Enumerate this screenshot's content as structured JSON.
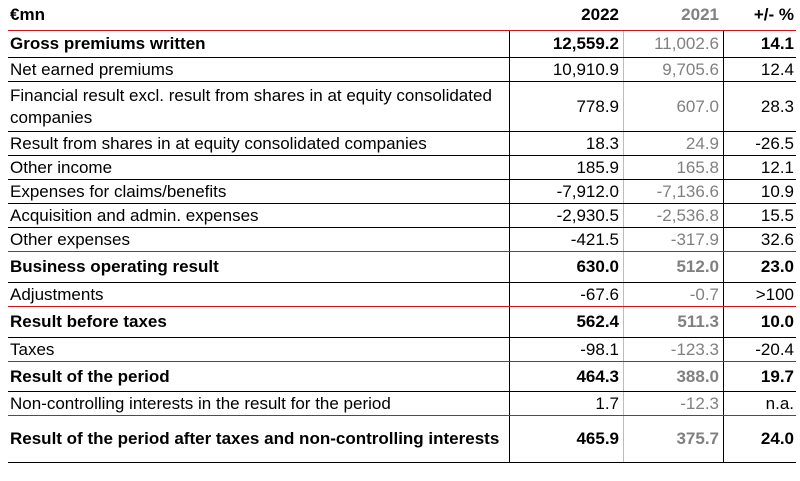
{
  "header": {
    "label": "€mn",
    "col_2022": "2022",
    "col_2021": "2021",
    "col_change": "+/- %"
  },
  "rows": [
    {
      "label": "Gross premiums written",
      "v2022": "12,559.2",
      "v2021": "11,002.6",
      "change": "14.1",
      "bold": true
    },
    {
      "label": "Net earned premiums",
      "v2022": "10,910.9",
      "v2021": "9,705.6",
      "change": "12.4",
      "bold": false
    },
    {
      "label": "Financial result excl. result from shares in at equity consolidated companies",
      "v2022": "778.9",
      "v2021": "607.0",
      "change": "28.3",
      "bold": false
    },
    {
      "label": "Result from shares in at equity consolidated companies",
      "v2022": "18.3",
      "v2021": "24.9",
      "change": "-26.5",
      "bold": false
    },
    {
      "label": "Other income",
      "v2022": "185.9",
      "v2021": "165.8",
      "change": "12.1",
      "bold": false
    },
    {
      "label": "Expenses for claims/benefits",
      "v2022": "-7,912.0",
      "v2021": "-7,136.6",
      "change": "10.9",
      "bold": false
    },
    {
      "label": "Acquisition and admin. expenses",
      "v2022": "-2,930.5",
      "v2021": "-2,536.8",
      "change": "15.5",
      "bold": false
    },
    {
      "label": "Other expenses",
      "v2022": "-421.5",
      "v2021": "-317.9",
      "change": "32.6",
      "bold": false
    },
    {
      "label": "Business operating result",
      "v2022": "630.0",
      "v2021": "512.0",
      "change": "23.0",
      "bold": true
    },
    {
      "label": "Adjustments",
      "v2022": "-67.6",
      "v2021": "-0.7",
      "change": ">100",
      "bold": false
    },
    {
      "label": "Result before taxes",
      "v2022": "562.4",
      "v2021": "511.3",
      "change": "10.0",
      "bold": true
    },
    {
      "label": "Taxes",
      "v2022": "-98.1",
      "v2021": "-123.3",
      "change": "-20.4",
      "bold": false
    },
    {
      "label": "Result of the period",
      "v2022": "464.3",
      "v2021": "388.0",
      "change": "19.7",
      "bold": true
    },
    {
      "label": "Non-controlling interests in the result for the period",
      "v2022": "1.7",
      "v2021": "-12.3",
      "change": "n.a.",
      "bold": false
    },
    {
      "label": "Result of the period after taxes and non-controlling interests",
      "v2022": "465.9",
      "v2021": "375.7",
      "change": "24.0",
      "bold": true
    }
  ],
  "colors": {
    "accent_red": "#d4141a",
    "prior_year_grey": "#808080"
  }
}
